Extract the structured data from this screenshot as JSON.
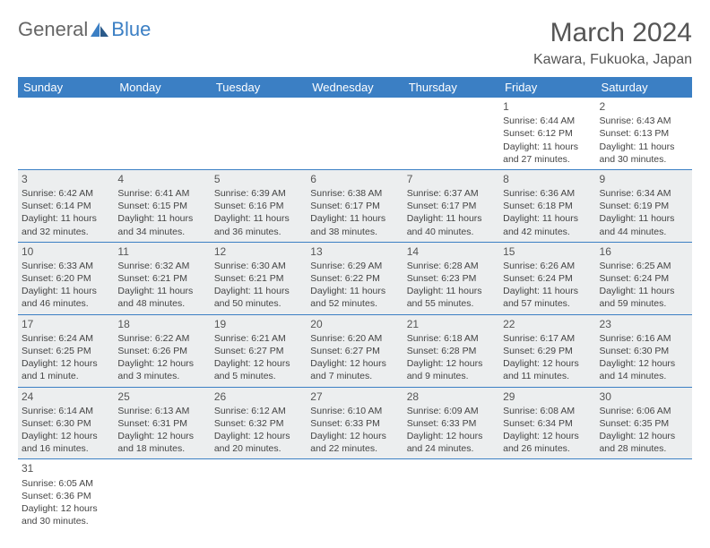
{
  "branding": {
    "general": "General",
    "blue": "Blue"
  },
  "header": {
    "title": "March 2024",
    "location": "Kawara, Fukuoka, Japan"
  },
  "colors": {
    "header_bg": "#3b7fc4",
    "header_text": "#ffffff",
    "stripe_bg": "#eceeef",
    "text": "#444444",
    "border": "#3b7fc4"
  },
  "weekdays": [
    "Sunday",
    "Monday",
    "Tuesday",
    "Wednesday",
    "Thursday",
    "Friday",
    "Saturday"
  ],
  "weeks": [
    [
      {
        "day": "",
        "sunrise": "",
        "sunset": "",
        "daylight": "",
        "stripe": false
      },
      {
        "day": "",
        "sunrise": "",
        "sunset": "",
        "daylight": "",
        "stripe": false
      },
      {
        "day": "",
        "sunrise": "",
        "sunset": "",
        "daylight": "",
        "stripe": false
      },
      {
        "day": "",
        "sunrise": "",
        "sunset": "",
        "daylight": "",
        "stripe": false
      },
      {
        "day": "",
        "sunrise": "",
        "sunset": "",
        "daylight": "",
        "stripe": false
      },
      {
        "day": "1",
        "sunrise": "Sunrise: 6:44 AM",
        "sunset": "Sunset: 6:12 PM",
        "daylight": "Daylight: 11 hours and 27 minutes.",
        "stripe": false
      },
      {
        "day": "2",
        "sunrise": "Sunrise: 6:43 AM",
        "sunset": "Sunset: 6:13 PM",
        "daylight": "Daylight: 11 hours and 30 minutes.",
        "stripe": false
      }
    ],
    [
      {
        "day": "3",
        "sunrise": "Sunrise: 6:42 AM",
        "sunset": "Sunset: 6:14 PM",
        "daylight": "Daylight: 11 hours and 32 minutes.",
        "stripe": true
      },
      {
        "day": "4",
        "sunrise": "Sunrise: 6:41 AM",
        "sunset": "Sunset: 6:15 PM",
        "daylight": "Daylight: 11 hours and 34 minutes.",
        "stripe": true
      },
      {
        "day": "5",
        "sunrise": "Sunrise: 6:39 AM",
        "sunset": "Sunset: 6:16 PM",
        "daylight": "Daylight: 11 hours and 36 minutes.",
        "stripe": true
      },
      {
        "day": "6",
        "sunrise": "Sunrise: 6:38 AM",
        "sunset": "Sunset: 6:17 PM",
        "daylight": "Daylight: 11 hours and 38 minutes.",
        "stripe": true
      },
      {
        "day": "7",
        "sunrise": "Sunrise: 6:37 AM",
        "sunset": "Sunset: 6:17 PM",
        "daylight": "Daylight: 11 hours and 40 minutes.",
        "stripe": true
      },
      {
        "day": "8",
        "sunrise": "Sunrise: 6:36 AM",
        "sunset": "Sunset: 6:18 PM",
        "daylight": "Daylight: 11 hours and 42 minutes.",
        "stripe": true
      },
      {
        "day": "9",
        "sunrise": "Sunrise: 6:34 AM",
        "sunset": "Sunset: 6:19 PM",
        "daylight": "Daylight: 11 hours and 44 minutes.",
        "stripe": true
      }
    ],
    [
      {
        "day": "10",
        "sunrise": "Sunrise: 6:33 AM",
        "sunset": "Sunset: 6:20 PM",
        "daylight": "Daylight: 11 hours and 46 minutes.",
        "stripe": true
      },
      {
        "day": "11",
        "sunrise": "Sunrise: 6:32 AM",
        "sunset": "Sunset: 6:21 PM",
        "daylight": "Daylight: 11 hours and 48 minutes.",
        "stripe": true
      },
      {
        "day": "12",
        "sunrise": "Sunrise: 6:30 AM",
        "sunset": "Sunset: 6:21 PM",
        "daylight": "Daylight: 11 hours and 50 minutes.",
        "stripe": true
      },
      {
        "day": "13",
        "sunrise": "Sunrise: 6:29 AM",
        "sunset": "Sunset: 6:22 PM",
        "daylight": "Daylight: 11 hours and 52 minutes.",
        "stripe": true
      },
      {
        "day": "14",
        "sunrise": "Sunrise: 6:28 AM",
        "sunset": "Sunset: 6:23 PM",
        "daylight": "Daylight: 11 hours and 55 minutes.",
        "stripe": true
      },
      {
        "day": "15",
        "sunrise": "Sunrise: 6:26 AM",
        "sunset": "Sunset: 6:24 PM",
        "daylight": "Daylight: 11 hours and 57 minutes.",
        "stripe": true
      },
      {
        "day": "16",
        "sunrise": "Sunrise: 6:25 AM",
        "sunset": "Sunset: 6:24 PM",
        "daylight": "Daylight: 11 hours and 59 minutes.",
        "stripe": true
      }
    ],
    [
      {
        "day": "17",
        "sunrise": "Sunrise: 6:24 AM",
        "sunset": "Sunset: 6:25 PM",
        "daylight": "Daylight: 12 hours and 1 minute.",
        "stripe": true
      },
      {
        "day": "18",
        "sunrise": "Sunrise: 6:22 AM",
        "sunset": "Sunset: 6:26 PM",
        "daylight": "Daylight: 12 hours and 3 minutes.",
        "stripe": true
      },
      {
        "day": "19",
        "sunrise": "Sunrise: 6:21 AM",
        "sunset": "Sunset: 6:27 PM",
        "daylight": "Daylight: 12 hours and 5 minutes.",
        "stripe": true
      },
      {
        "day": "20",
        "sunrise": "Sunrise: 6:20 AM",
        "sunset": "Sunset: 6:27 PM",
        "daylight": "Daylight: 12 hours and 7 minutes.",
        "stripe": true
      },
      {
        "day": "21",
        "sunrise": "Sunrise: 6:18 AM",
        "sunset": "Sunset: 6:28 PM",
        "daylight": "Daylight: 12 hours and 9 minutes.",
        "stripe": true
      },
      {
        "day": "22",
        "sunrise": "Sunrise: 6:17 AM",
        "sunset": "Sunset: 6:29 PM",
        "daylight": "Daylight: 12 hours and 11 minutes.",
        "stripe": true
      },
      {
        "day": "23",
        "sunrise": "Sunrise: 6:16 AM",
        "sunset": "Sunset: 6:30 PM",
        "daylight": "Daylight: 12 hours and 14 minutes.",
        "stripe": true
      }
    ],
    [
      {
        "day": "24",
        "sunrise": "Sunrise: 6:14 AM",
        "sunset": "Sunset: 6:30 PM",
        "daylight": "Daylight: 12 hours and 16 minutes.",
        "stripe": true
      },
      {
        "day": "25",
        "sunrise": "Sunrise: 6:13 AM",
        "sunset": "Sunset: 6:31 PM",
        "daylight": "Daylight: 12 hours and 18 minutes.",
        "stripe": true
      },
      {
        "day": "26",
        "sunrise": "Sunrise: 6:12 AM",
        "sunset": "Sunset: 6:32 PM",
        "daylight": "Daylight: 12 hours and 20 minutes.",
        "stripe": true
      },
      {
        "day": "27",
        "sunrise": "Sunrise: 6:10 AM",
        "sunset": "Sunset: 6:33 PM",
        "daylight": "Daylight: 12 hours and 22 minutes.",
        "stripe": true
      },
      {
        "day": "28",
        "sunrise": "Sunrise: 6:09 AM",
        "sunset": "Sunset: 6:33 PM",
        "daylight": "Daylight: 12 hours and 24 minutes.",
        "stripe": true
      },
      {
        "day": "29",
        "sunrise": "Sunrise: 6:08 AM",
        "sunset": "Sunset: 6:34 PM",
        "daylight": "Daylight: 12 hours and 26 minutes.",
        "stripe": true
      },
      {
        "day": "30",
        "sunrise": "Sunrise: 6:06 AM",
        "sunset": "Sunset: 6:35 PM",
        "daylight": "Daylight: 12 hours and 28 minutes.",
        "stripe": true
      }
    ],
    [
      {
        "day": "31",
        "sunrise": "Sunrise: 6:05 AM",
        "sunset": "Sunset: 6:36 PM",
        "daylight": "Daylight: 12 hours and 30 minutes.",
        "stripe": false
      },
      {
        "day": "",
        "sunrise": "",
        "sunset": "",
        "daylight": "",
        "stripe": false
      },
      {
        "day": "",
        "sunrise": "",
        "sunset": "",
        "daylight": "",
        "stripe": false
      },
      {
        "day": "",
        "sunrise": "",
        "sunset": "",
        "daylight": "",
        "stripe": false
      },
      {
        "day": "",
        "sunrise": "",
        "sunset": "",
        "daylight": "",
        "stripe": false
      },
      {
        "day": "",
        "sunrise": "",
        "sunset": "",
        "daylight": "",
        "stripe": false
      },
      {
        "day": "",
        "sunrise": "",
        "sunset": "",
        "daylight": "",
        "stripe": false
      }
    ]
  ]
}
